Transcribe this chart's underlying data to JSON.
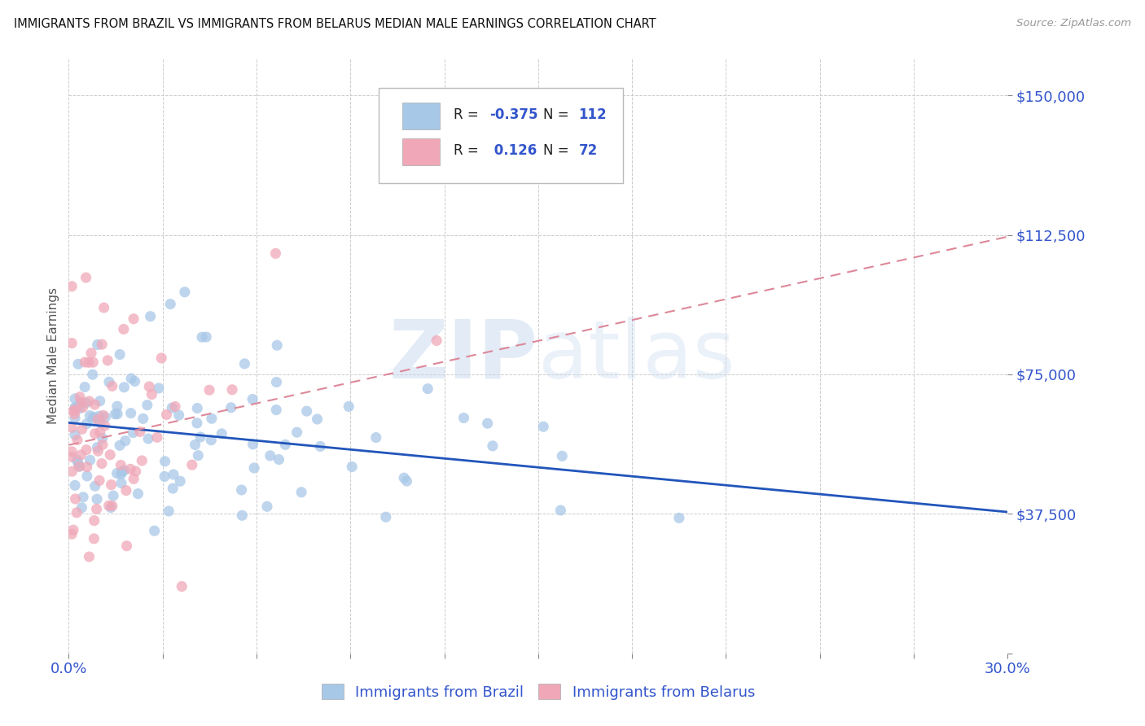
{
  "title": "IMMIGRANTS FROM BRAZIL VS IMMIGRANTS FROM BELARUS MEDIAN MALE EARNINGS CORRELATION CHART",
  "source": "Source: ZipAtlas.com",
  "xlabel_brazil": "Immigrants from Brazil",
  "xlabel_belarus": "Immigrants from Belarus",
  "ylabel": "Median Male Earnings",
  "watermark_zip": "ZIP",
  "watermark_atlas": "atlas",
  "brazil_R": -0.375,
  "brazil_N": 112,
  "belarus_R": 0.126,
  "belarus_N": 72,
  "brazil_color": "#a8c8e8",
  "belarus_color": "#f0a8b8",
  "brazil_line_color": "#2255bb",
  "belarus_line_color": "#dd8899",
  "axis_label_color": "#3355cc",
  "title_color": "#111111",
  "xmin": 0.0,
  "xmax": 0.3,
  "ymin": 0,
  "ymax": 160000,
  "yticks": [
    0,
    37500,
    75000,
    112500,
    150000
  ],
  "ytick_labels": [
    "",
    "$37,500",
    "$75,000",
    "$112,500",
    "$150,000"
  ],
  "xticks": [
    0.0,
    0.03,
    0.06,
    0.09,
    0.12,
    0.15,
    0.18,
    0.21,
    0.24,
    0.27,
    0.3
  ],
  "background_color": "#ffffff",
  "grid_color": "#cccccc",
  "brazil_line_y0": 62000,
  "brazil_line_y1": 38000,
  "belarus_line_y0": 56000,
  "belarus_line_y1": 112000
}
